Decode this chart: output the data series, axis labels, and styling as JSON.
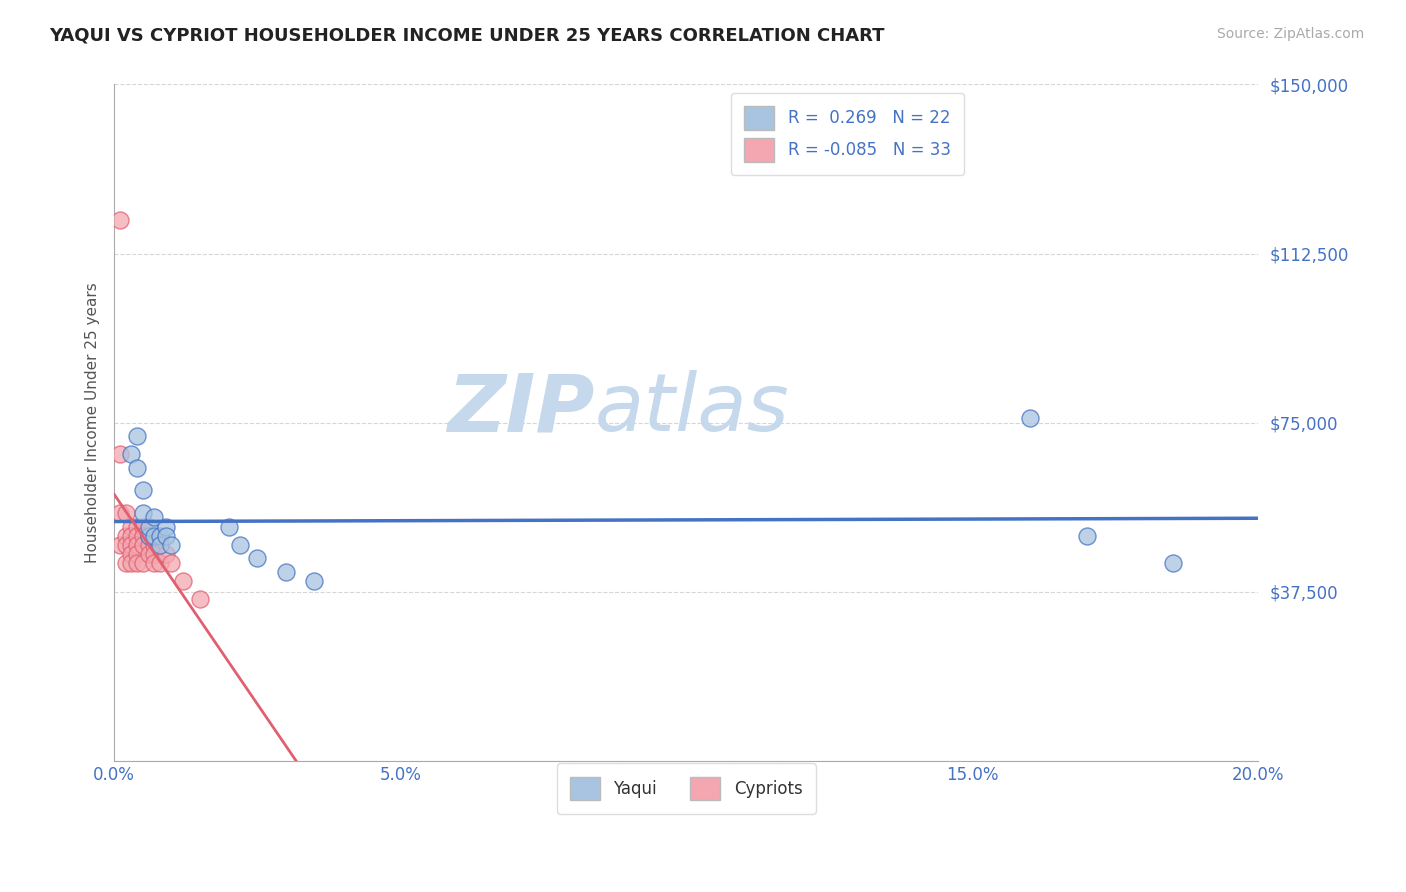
{
  "title": "YAQUI VS CYPRIOT HOUSEHOLDER INCOME UNDER 25 YEARS CORRELATION CHART",
  "source": "Source: ZipAtlas.com",
  "tick_color": "#4472c4",
  "ylabel": "Householder Income Under 25 years",
  "yaqui_R": 0.269,
  "yaqui_N": 22,
  "cypriot_R": -0.085,
  "cypriot_N": 33,
  "xlim": [
    0.0,
    0.2
  ],
  "ylim": [
    0,
    150000
  ],
  "yticks": [
    0,
    37500,
    75000,
    112500,
    150000
  ],
  "ytick_labels": [
    "",
    "$37,500",
    "$75,000",
    "$112,500",
    "$150,000"
  ],
  "xtick_labels": [
    "0.0%",
    "",
    "5.0%",
    "",
    "10.0%",
    "",
    "15.0%",
    "",
    "20.0%"
  ],
  "xticks": [
    0.0,
    0.025,
    0.05,
    0.075,
    0.1,
    0.125,
    0.15,
    0.175,
    0.2
  ],
  "yaqui_color": "#a8c4e0",
  "cypriot_color": "#f4a7b0",
  "yaqui_line_color": "#4472c4",
  "cypriot_line_color": "#e06070",
  "watermark_zip": "ZIP",
  "watermark_atlas": "atlas",
  "watermark_color_zip": "#c5d8ec",
  "watermark_color_atlas": "#c5d8ec",
  "background_color": "#ffffff",
  "yaqui_x": [
    0.003,
    0.004,
    0.004,
    0.005,
    0.005,
    0.006,
    0.006,
    0.007,
    0.007,
    0.008,
    0.008,
    0.009,
    0.009,
    0.01,
    0.02,
    0.022,
    0.025,
    0.03,
    0.035,
    0.16,
    0.17,
    0.185
  ],
  "yaqui_y": [
    68000,
    72000,
    65000,
    55000,
    60000,
    50000,
    52000,
    50000,
    54000,
    50000,
    48000,
    52000,
    50000,
    48000,
    52000,
    48000,
    45000,
    42000,
    40000,
    76000,
    50000,
    44000
  ],
  "cypriot_x": [
    0.001,
    0.001,
    0.001,
    0.001,
    0.002,
    0.002,
    0.002,
    0.002,
    0.003,
    0.003,
    0.003,
    0.003,
    0.003,
    0.004,
    0.004,
    0.004,
    0.004,
    0.004,
    0.005,
    0.005,
    0.005,
    0.005,
    0.006,
    0.006,
    0.006,
    0.007,
    0.007,
    0.007,
    0.008,
    0.009,
    0.01,
    0.012,
    0.015
  ],
  "cypriot_y": [
    120000,
    68000,
    55000,
    48000,
    55000,
    50000,
    48000,
    44000,
    52000,
    50000,
    48000,
    46000,
    44000,
    52000,
    50000,
    48000,
    46000,
    44000,
    52000,
    50000,
    48000,
    44000,
    50000,
    48000,
    46000,
    48000,
    46000,
    44000,
    44000,
    46000,
    44000,
    40000,
    36000
  ]
}
